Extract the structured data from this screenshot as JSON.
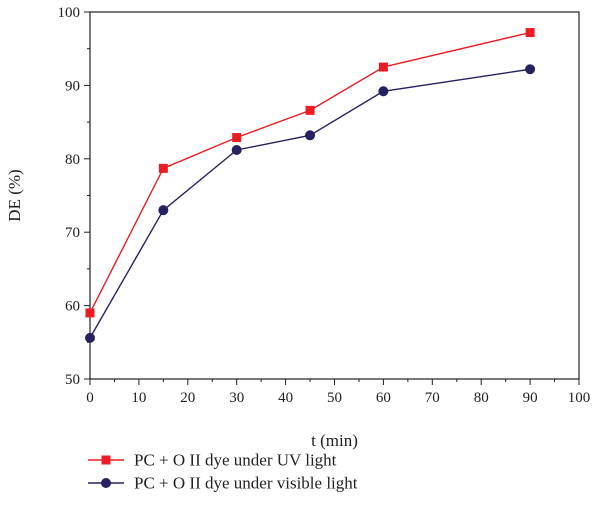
{
  "chart_data": {
    "type": "line",
    "xlabel": "t (min)",
    "ylabel": "DE (%)",
    "xlim": [
      0,
      100
    ],
    "ylim": [
      50,
      100
    ],
    "xticks": [
      0,
      10,
      20,
      30,
      40,
      50,
      60,
      70,
      80,
      90,
      100
    ],
    "yticks": [
      50,
      60,
      70,
      80,
      90,
      100
    ],
    "grid": false,
    "legend_position": "bottom-left, below plot",
    "series": [
      {
        "name": "PC + O II dye under UV light",
        "color": "#ed1c24",
        "marker": "square",
        "x": [
          0,
          15,
          30,
          45,
          60,
          90
        ],
        "y": [
          59.0,
          78.7,
          82.9,
          86.6,
          92.5,
          97.2
        ]
      },
      {
        "name": "PC + O II dye under visible light",
        "color": "#262262",
        "marker": "circle",
        "x": [
          0,
          15,
          30,
          45,
          60,
          90
        ],
        "y": [
          55.6,
          73.0,
          81.2,
          83.2,
          89.2,
          92.2
        ]
      }
    ]
  }
}
